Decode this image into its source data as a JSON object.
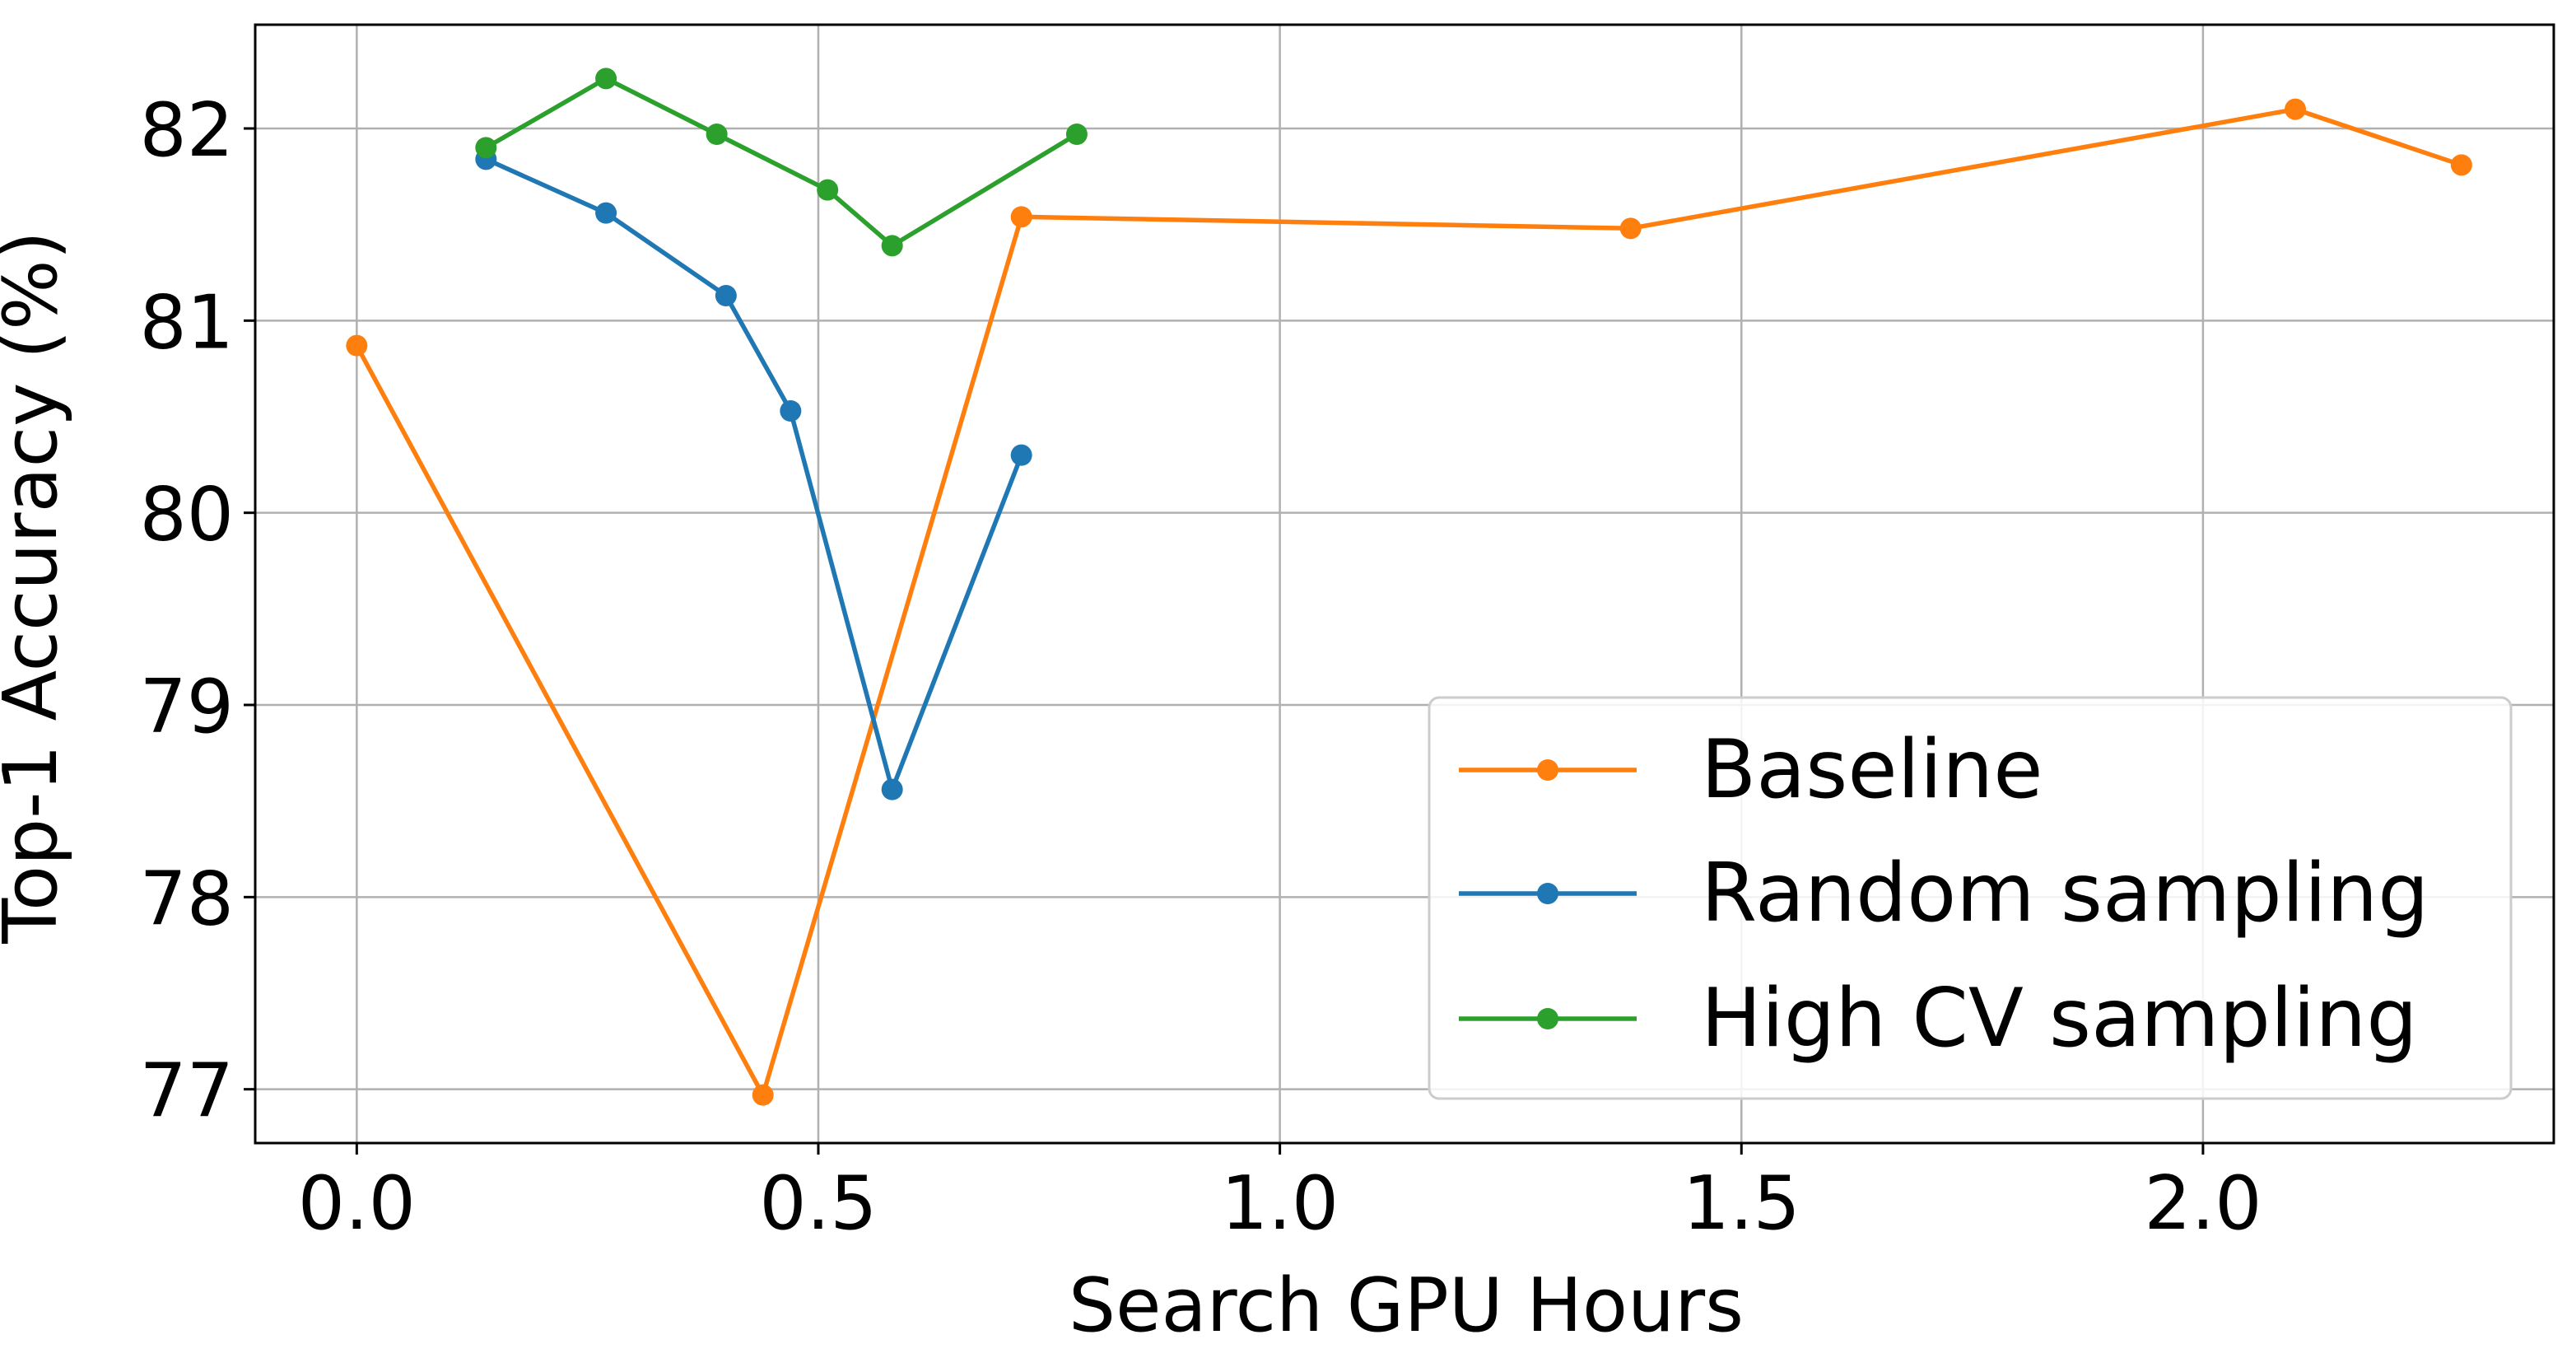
{
  "chart_data": {
    "type": "line",
    "title": "",
    "xlabel": "Search GPU Hours",
    "ylabel": "Top-1 Accuracy (%)",
    "xlim": [
      -0.11,
      2.38
    ],
    "ylim": [
      76.72,
      82.54
    ],
    "xticks": [
      0.0,
      0.5,
      1.0,
      1.5,
      2.0
    ],
    "xtick_labels": [
      "0.0",
      "0.5",
      "1.0",
      "1.5",
      "2.0"
    ],
    "yticks": [
      77,
      78,
      79,
      80,
      81,
      82
    ],
    "ytick_labels": [
      "77",
      "78",
      "79",
      "80",
      "81",
      "82"
    ],
    "grid": true,
    "legend_position": "lower-right",
    "series": [
      {
        "name": "Baseline",
        "color": "#ff7f0e",
        "marker": "circle",
        "x": [
          0.0,
          0.44,
          0.72,
          1.38,
          2.1,
          2.28
        ],
        "y": [
          80.87,
          76.97,
          81.54,
          81.48,
          82.1,
          81.81
        ]
      },
      {
        "name": "Random sampling",
        "color": "#1f77b4",
        "marker": "circle",
        "x": [
          0.14,
          0.27,
          0.4,
          0.47,
          0.58,
          0.72
        ],
        "y": [
          81.84,
          81.56,
          81.13,
          80.53,
          78.56,
          80.3
        ]
      },
      {
        "name": "High CV sampling",
        "color": "#2ca02c",
        "marker": "circle",
        "x": [
          0.14,
          0.27,
          0.39,
          0.51,
          0.58,
          0.78
        ],
        "y": [
          81.9,
          82.26,
          81.97,
          81.68,
          81.39,
          81.97
        ]
      }
    ]
  }
}
